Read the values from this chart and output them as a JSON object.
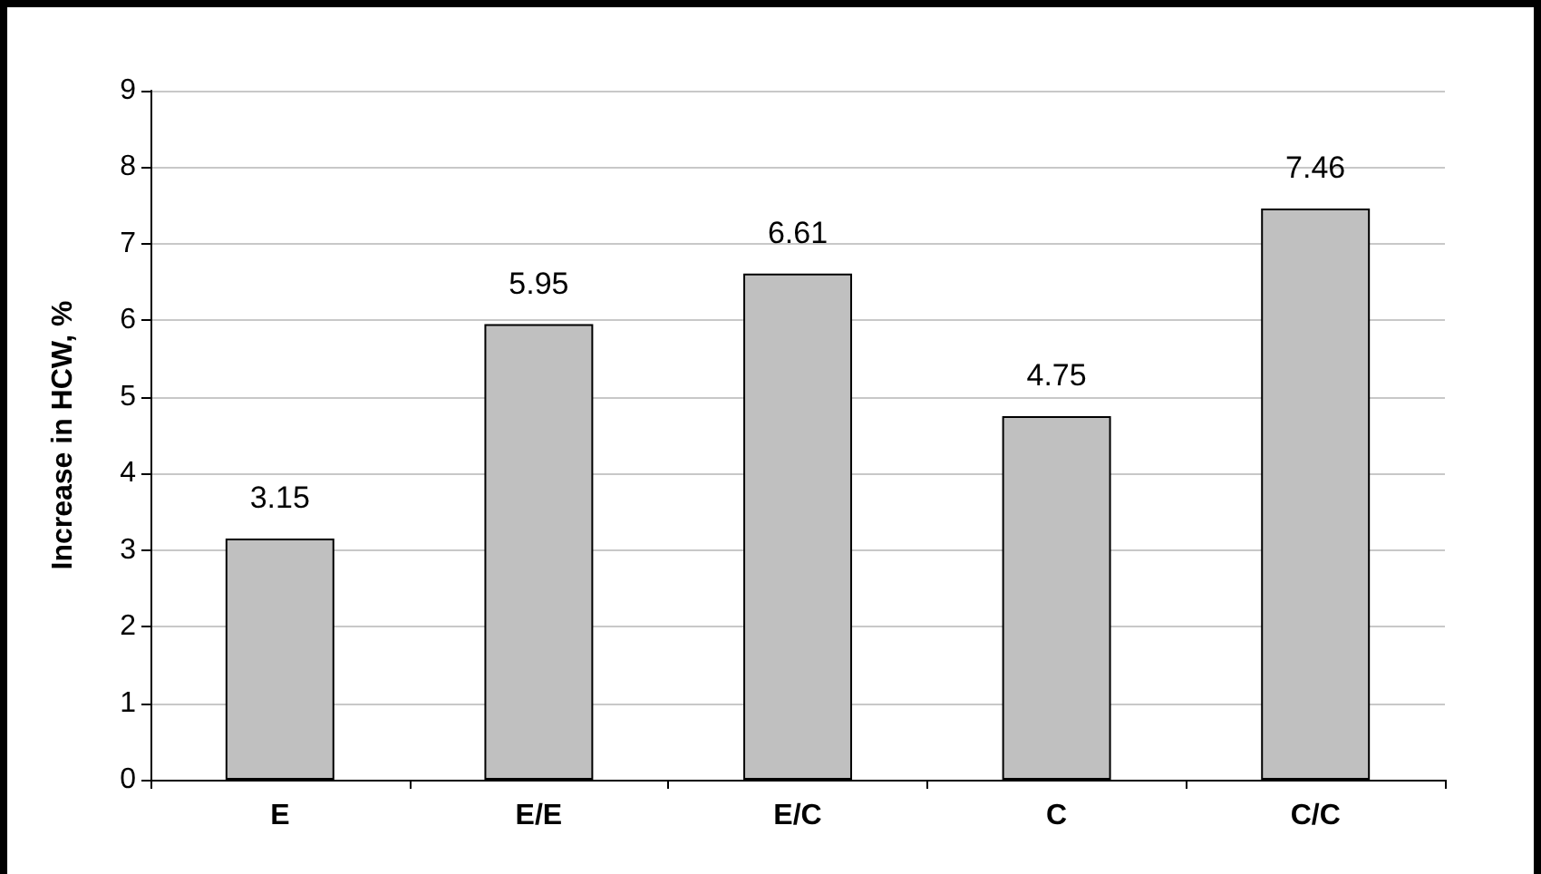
{
  "chart_data": {
    "type": "bar",
    "ylabel": "Increase in HCW, %",
    "categories": [
      "E",
      "E/E",
      "E/C",
      "C",
      "C/C"
    ],
    "values": [
      3.15,
      5.95,
      6.61,
      4.75,
      7.46
    ],
    "color": "#c0c0c0",
    "ylim": [
      0,
      9
    ],
    "yticks": [
      0,
      1,
      2,
      3,
      4,
      5,
      6,
      7,
      8,
      9
    ],
    "grid": "y",
    "data_labels": true
  }
}
